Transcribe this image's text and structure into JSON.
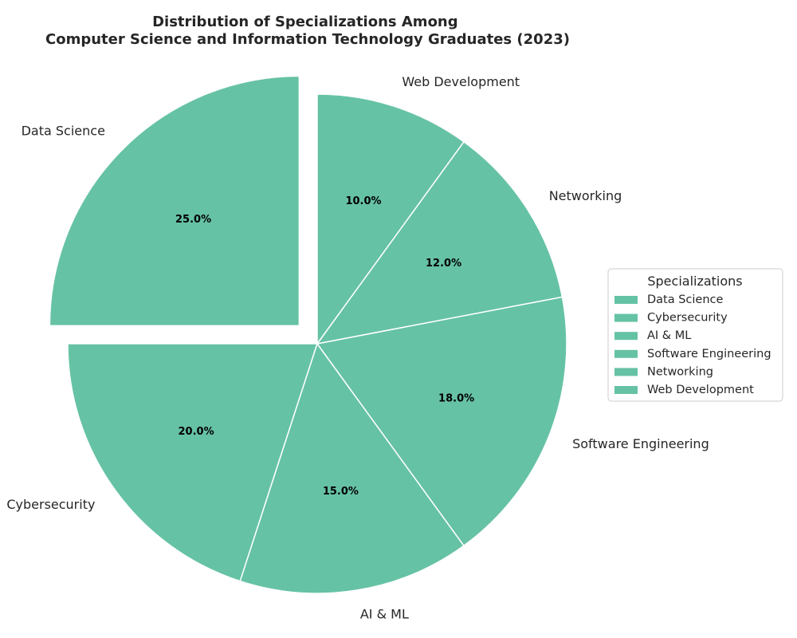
{
  "chart_data": {
    "type": "pie",
    "title": "Distribution of Specializations Among\nComputer Science and Information Technology Graduates (2023)",
    "categories": [
      "Data Science",
      "Cybersecurity",
      "AI & ML",
      "Software Engineering",
      "Networking",
      "Web Development"
    ],
    "values": [
      25.0,
      20.0,
      15.0,
      18.0,
      12.0,
      10.0
    ],
    "value_labels": [
      "25.0%",
      "20.0%",
      "15.0%",
      "18.0%",
      "12.0%",
      "10.0%"
    ],
    "exploded": [
      "Data Science"
    ],
    "slice_color": "#66c2a5",
    "edge_color": "#ffffff",
    "direction": "counterclockwise",
    "start_angle_deg": 90,
    "legend": {
      "title": "Specializations",
      "entries": [
        "Data Science",
        "Cybersecurity",
        "AI & ML",
        "Software Engineering",
        "Networking",
        "Web Development"
      ],
      "placement": "center-right"
    }
  }
}
